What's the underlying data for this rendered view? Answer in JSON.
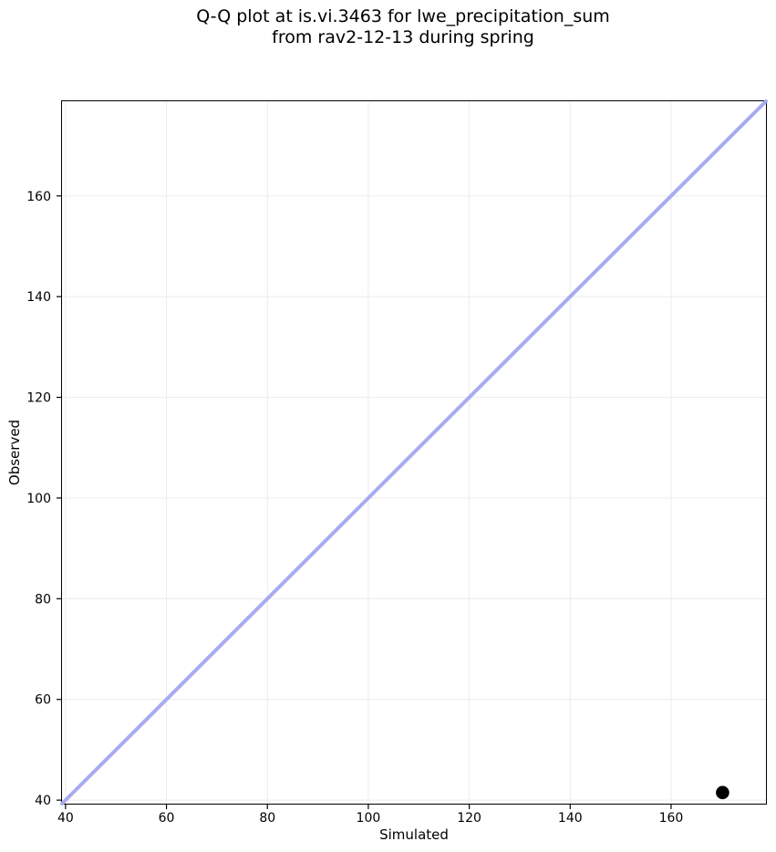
{
  "chart_data": {
    "type": "scatter",
    "title": "Q-Q plot at is.vi.3463 for lwe_precipitation_sum\nfrom rav2-12-13 during spring",
    "title_lines": [
      "Q-Q plot at is.vi.3463 for lwe_precipitation_sum",
      "from rav2-12-13 during spring"
    ],
    "xlabel": "Simulated",
    "ylabel": "Observed",
    "xlim": [
      39.3,
      178.8
    ],
    "ylim": [
      39.3,
      178.8
    ],
    "xticks": [
      40,
      60,
      80,
      100,
      120,
      140,
      160
    ],
    "yticks": [
      40,
      60,
      80,
      100,
      120,
      140,
      160
    ],
    "grid": true,
    "legend": "none",
    "identity_line": {
      "name": "y = x reference line",
      "from": [
        39.3,
        39.3
      ],
      "to": [
        178.8,
        178.8
      ],
      "color": "#a8abf0",
      "width": 4
    },
    "points": [
      {
        "simulated": 170.2,
        "observed": 41.5
      }
    ],
    "point_style": {
      "color": "#000000",
      "radius": 7.3
    },
    "colors": {
      "grid": "#ececec",
      "spine": "#000000",
      "tick": "#000000",
      "text": "#000000"
    }
  }
}
